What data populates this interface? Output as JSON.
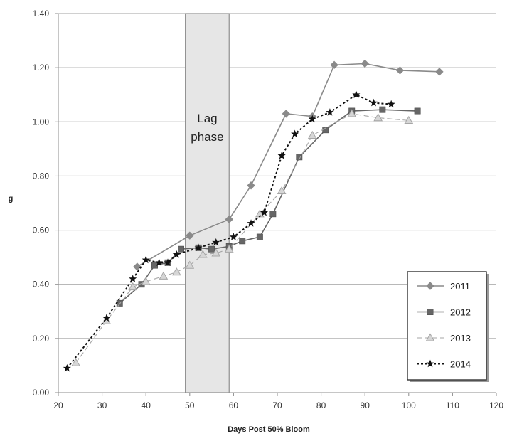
{
  "chart_data": {
    "type": "line",
    "xlabel": "Days Post 50% Bloom",
    "ylabel": "g",
    "xlim": [
      20,
      120
    ],
    "ylim": [
      0.0,
      1.4
    ],
    "x_ticks": [
      20,
      30,
      40,
      50,
      60,
      70,
      80,
      90,
      100,
      110,
      120
    ],
    "y_ticks": [
      0.0,
      0.2,
      0.4,
      0.6,
      0.8,
      1.0,
      1.2,
      1.4
    ],
    "x_tick_labels": [
      "20",
      "30",
      "40",
      "50",
      "60",
      "70",
      "80",
      "90",
      "100",
      "110",
      "120"
    ],
    "y_tick_labels": [
      "0.00",
      "0.20",
      "0.40",
      "0.60",
      "0.80",
      "1.00",
      "1.20",
      "1.40"
    ],
    "grid": "horizontal",
    "legend_position": "bottom-right",
    "shaded_region": {
      "x_start": 49,
      "x_end": 59,
      "label_lines": [
        "Lag",
        "phase"
      ],
      "color": "#e6e6e6"
    },
    "series": [
      {
        "name": "2011",
        "marker": "diamond",
        "color": "#8a8a8a",
        "dash": "solid",
        "x": [
          38,
          50,
          59,
          64,
          72,
          78,
          83,
          90,
          98,
          107
        ],
        "y": [
          0.465,
          0.58,
          0.64,
          0.765,
          1.03,
          1.02,
          1.21,
          1.215,
          1.19,
          1.185
        ]
      },
      {
        "name": "2012",
        "marker": "square",
        "color": "#666666",
        "dash": "solid",
        "x": [
          34,
          39,
          42,
          45,
          48,
          52,
          55,
          59,
          62,
          66,
          69,
          75,
          81,
          87,
          94,
          102
        ],
        "y": [
          0.33,
          0.4,
          0.47,
          0.48,
          0.53,
          0.535,
          0.53,
          0.54,
          0.56,
          0.575,
          0.66,
          0.87,
          0.97,
          1.04,
          1.045,
          1.04
        ]
      },
      {
        "name": "2013",
        "marker": "triangle",
        "color": "#a6a6a6",
        "dash": "dashed",
        "x": [
          24,
          31,
          37,
          40,
          44,
          47,
          50,
          53,
          56,
          59,
          66,
          71,
          78,
          87,
          93,
          100
        ],
        "y": [
          0.11,
          0.265,
          0.39,
          0.41,
          0.43,
          0.445,
          0.47,
          0.51,
          0.515,
          0.53,
          0.66,
          0.745,
          0.95,
          1.03,
          1.015,
          1.005
        ]
      },
      {
        "name": "2014",
        "marker": "star",
        "color": "#111111",
        "dash": "dotted",
        "x": [
          22,
          31,
          37,
          40,
          43,
          45,
          47,
          52,
          56,
          60,
          64,
          67,
          71,
          74,
          78,
          82,
          88,
          92,
          96
        ],
        "y": [
          0.09,
          0.275,
          0.42,
          0.49,
          0.48,
          0.48,
          0.51,
          0.535,
          0.555,
          0.575,
          0.625,
          0.665,
          0.875,
          0.955,
          1.01,
          1.035,
          1.1,
          1.07,
          1.065
        ]
      }
    ]
  }
}
